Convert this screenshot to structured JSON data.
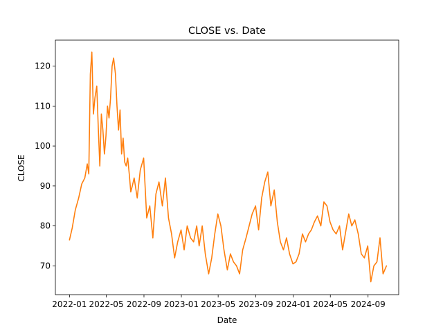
{
  "chart_data": {
    "type": "line",
    "title": "CLOSE vs. Date",
    "xlabel": "Date",
    "ylabel": "CLOSE",
    "x_axis_type": "date",
    "xlim": [
      "2021-11-16",
      "2024-12-10"
    ],
    "ylim": [
      62.8,
      126.5
    ],
    "grid": false,
    "legend": "none",
    "x_ticks": [
      "2022-01",
      "2022-05",
      "2022-09",
      "2023-01",
      "2023-05",
      "2023-09",
      "2024-01",
      "2024-05",
      "2024-09"
    ],
    "y_ticks": [
      70,
      80,
      90,
      100,
      110,
      120
    ],
    "series": [
      {
        "color": "#ff7f0e",
        "x": [
          "2022-01-01",
          "2022-01-10",
          "2022-01-20",
          "2022-01-31",
          "2022-02-10",
          "2022-02-20",
          "2022-02-28",
          "2022-03-05",
          "2022-03-10",
          "2022-03-15",
          "2022-03-20",
          "2022-03-25",
          "2022-03-31",
          "2022-04-05",
          "2022-04-10",
          "2022-04-15",
          "2022-04-20",
          "2022-04-25",
          "2022-04-30",
          "2022-05-05",
          "2022-05-10",
          "2022-05-15",
          "2022-05-20",
          "2022-05-25",
          "2022-05-31",
          "2022-06-05",
          "2022-06-10",
          "2022-06-15",
          "2022-06-20",
          "2022-06-25",
          "2022-06-30",
          "2022-07-05",
          "2022-07-10",
          "2022-07-15",
          "2022-07-20",
          "2022-07-25",
          "2022-07-31",
          "2022-08-10",
          "2022-08-20",
          "2022-08-31",
          "2022-09-10",
          "2022-09-20",
          "2022-09-30",
          "2022-10-10",
          "2022-10-20",
          "2022-10-31",
          "2022-11-10",
          "2022-11-20",
          "2022-11-30",
          "2022-12-10",
          "2022-12-20",
          "2022-12-31",
          "2023-01-10",
          "2023-01-20",
          "2023-01-31",
          "2023-02-10",
          "2023-02-20",
          "2023-02-28",
          "2023-03-10",
          "2023-03-20",
          "2023-03-31",
          "2023-04-10",
          "2023-04-20",
          "2023-04-30",
          "2023-05-10",
          "2023-05-20",
          "2023-05-31",
          "2023-06-10",
          "2023-06-20",
          "2023-06-30",
          "2023-07-10",
          "2023-07-20",
          "2023-07-31",
          "2023-08-10",
          "2023-08-20",
          "2023-08-31",
          "2023-09-10",
          "2023-09-20",
          "2023-09-30",
          "2023-10-10",
          "2023-10-20",
          "2023-10-31",
          "2023-11-10",
          "2023-11-20",
          "2023-11-30",
          "2023-12-10",
          "2023-12-20",
          "2023-12-31",
          "2024-01-10",
          "2024-01-20",
          "2024-01-31",
          "2024-02-10",
          "2024-02-20",
          "2024-02-29",
          "2024-03-10",
          "2024-03-20",
          "2024-03-31",
          "2024-04-10",
          "2024-04-20",
          "2024-04-30",
          "2024-05-10",
          "2024-05-20",
          "2024-05-31",
          "2024-06-10",
          "2024-06-20",
          "2024-06-30",
          "2024-07-10",
          "2024-07-20",
          "2024-07-31",
          "2024-08-10",
          "2024-08-20",
          "2024-08-31",
          "2024-09-10",
          "2024-09-20",
          "2024-09-30",
          "2024-10-10",
          "2024-10-20",
          "2024-10-31"
        ],
        "y": [
          76.5,
          79.5,
          84.0,
          87.0,
          90.5,
          92.0,
          95.5,
          93.0,
          118.0,
          123.5,
          108.0,
          112.0,
          115.0,
          104.5,
          95.0,
          108.0,
          104.0,
          98.0,
          102.5,
          110.0,
          107.0,
          112.0,
          120.0,
          122.0,
          118.0,
          110.0,
          104.0,
          109.0,
          98.0,
          102.0,
          96.0,
          95.0,
          97.0,
          93.0,
          88.5,
          90.0,
          92.0,
          87.0,
          94.0,
          97.0,
          82.0,
          85.0,
          77.0,
          88.0,
          91.0,
          85.0,
          92.0,
          82.0,
          78.0,
          72.0,
          76.0,
          79.0,
          74.0,
          80.0,
          77.0,
          76.0,
          80.0,
          75.0,
          80.0,
          73.0,
          68.0,
          72.0,
          78.0,
          83.0,
          80.0,
          74.0,
          69.0,
          73.0,
          71.0,
          70.0,
          68.0,
          74.0,
          77.0,
          80.0,
          83.0,
          85.0,
          79.0,
          87.0,
          91.0,
          93.5,
          85.0,
          89.0,
          81.0,
          76.0,
          74.0,
          77.0,
          73.0,
          70.5,
          71.0,
          73.0,
          78.0,
          76.0,
          78.0,
          79.0,
          81.0,
          82.5,
          80.0,
          86.0,
          85.0,
          81.0,
          79.0,
          78.0,
          80.0,
          74.0,
          78.5,
          83.0,
          80.0,
          81.5,
          78.0,
          73.0,
          72.0,
          75.0,
          66.0,
          70.0,
          71.0,
          77.0,
          68.0,
          70.0
        ]
      }
    ]
  }
}
